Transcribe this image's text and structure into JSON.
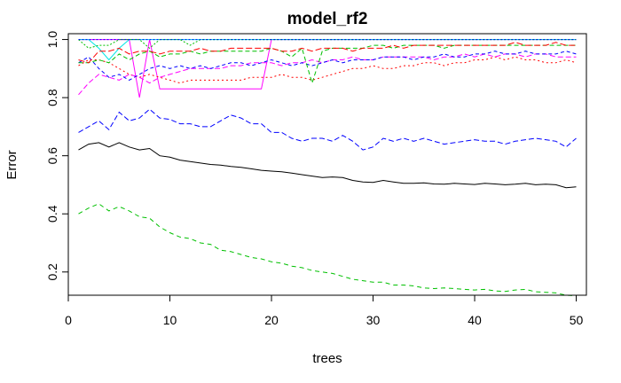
{
  "chart_data": {
    "type": "line",
    "title": "model_rf2",
    "xlabel": "trees",
    "ylabel": "Error",
    "xlim": [
      0,
      51
    ],
    "ylim": [
      0.12,
      1.02
    ],
    "x_ticks": [
      "0",
      "10",
      "20",
      "30",
      "40",
      "50"
    ],
    "y_ticks": [
      "0.2",
      "0.4",
      "0.6",
      "0.8",
      "1.0"
    ],
    "grid": false,
    "legend": "none",
    "x": [
      1,
      2,
      3,
      4,
      5,
      6,
      7,
      8,
      9,
      10,
      11,
      12,
      13,
      14,
      15,
      16,
      17,
      18,
      19,
      20,
      21,
      22,
      23,
      24,
      25,
      26,
      27,
      28,
      29,
      30,
      31,
      32,
      33,
      34,
      35,
      36,
      37,
      38,
      39,
      40,
      41,
      42,
      43,
      44,
      45,
      46,
      47,
      48,
      49,
      50
    ],
    "series": [
      {
        "color": "#000000",
        "dash": "",
        "values": [
          0.62,
          0.64,
          0.645,
          0.63,
          0.645,
          0.63,
          0.62,
          0.625,
          0.6,
          0.595,
          0.585,
          0.58,
          0.575,
          0.57,
          0.568,
          0.563,
          0.56,
          0.555,
          0.55,
          0.547,
          0.545,
          0.54,
          0.535,
          0.53,
          0.525,
          0.527,
          0.525,
          0.515,
          0.51,
          0.508,
          0.515,
          0.51,
          0.505,
          0.505,
          0.507,
          0.503,
          0.502,
          0.505,
          0.503,
          0.501,
          0.505,
          0.503,
          0.5,
          0.502,
          0.505,
          0.5,
          0.502,
          0.5,
          0.49,
          0.493
        ]
      },
      {
        "color": "#0000ff",
        "dash": "6,3",
        "values": [
          0.68,
          0.7,
          0.72,
          0.69,
          0.75,
          0.72,
          0.73,
          0.76,
          0.73,
          0.725,
          0.71,
          0.71,
          0.7,
          0.7,
          0.72,
          0.74,
          0.73,
          0.71,
          0.71,
          0.68,
          0.68,
          0.66,
          0.65,
          0.66,
          0.66,
          0.65,
          0.67,
          0.65,
          0.62,
          0.63,
          0.66,
          0.65,
          0.66,
          0.65,
          0.66,
          0.65,
          0.64,
          0.645,
          0.65,
          0.655,
          0.65,
          0.65,
          0.64,
          0.65,
          0.655,
          0.66,
          0.655,
          0.65,
          0.63,
          0.66
        ]
      },
      {
        "color": "#00c000",
        "dash": "5,4",
        "values": [
          0.4,
          0.42,
          0.435,
          0.41,
          0.425,
          0.41,
          0.39,
          0.385,
          0.355,
          0.335,
          0.32,
          0.315,
          0.3,
          0.295,
          0.275,
          0.27,
          0.26,
          0.25,
          0.245,
          0.235,
          0.23,
          0.22,
          0.215,
          0.205,
          0.2,
          0.195,
          0.185,
          0.175,
          0.17,
          0.165,
          0.165,
          0.155,
          0.155,
          0.152,
          0.145,
          0.143,
          0.145,
          0.143,
          0.14,
          0.138,
          0.14,
          0.135,
          0.133,
          0.138,
          0.14,
          0.132,
          0.13,
          0.128,
          0.12,
          0.118
        ]
      },
      {
        "color": "#ff00ff",
        "dash": "",
        "values": [
          1.0,
          1.0,
          1.0,
          1.0,
          1.0,
          1.0,
          0.8,
          1.0,
          0.83,
          0.83,
          0.83,
          0.83,
          0.83,
          0.83,
          0.83,
          0.83,
          0.83,
          0.83,
          0.83,
          1.0,
          1.0,
          1.0,
          1.0,
          1.0,
          1.0,
          1.0,
          1.0,
          1.0,
          1.0,
          1.0,
          1.0,
          1.0,
          1.0,
          1.0,
          1.0,
          1.0,
          1.0,
          1.0,
          1.0,
          1.0,
          1.0,
          1.0,
          1.0,
          1.0,
          1.0,
          1.0,
          1.0,
          1.0,
          1.0,
          1.0
        ]
      },
      {
        "color": "#00e5e5",
        "dash": "",
        "values": [
          1.0,
          1.0,
          0.97,
          0.93,
          0.97,
          1.0,
          1.0,
          1.0,
          1.0,
          1.0,
          1.0,
          1.0,
          1.0,
          1.0,
          1.0,
          1.0,
          1.0,
          1.0,
          1.0,
          1.0,
          1.0,
          1.0,
          1.0,
          1.0,
          1.0,
          1.0,
          1.0,
          1.0,
          1.0,
          1.0,
          1.0,
          1.0,
          1.0,
          1.0,
          1.0,
          1.0,
          1.0,
          1.0,
          1.0,
          1.0,
          1.0,
          1.0,
          1.0,
          1.0,
          1.0,
          1.0,
          1.0,
          1.0,
          1.0,
          1.0
        ]
      },
      {
        "color": "#ff0000",
        "dash": "2,3",
        "values": [
          0.91,
          0.93,
          0.93,
          0.92,
          0.9,
          0.88,
          0.87,
          0.88,
          0.87,
          0.86,
          0.85,
          0.86,
          0.86,
          0.86,
          0.86,
          0.86,
          0.86,
          0.87,
          0.87,
          0.87,
          0.88,
          0.87,
          0.87,
          0.86,
          0.87,
          0.88,
          0.89,
          0.9,
          0.9,
          0.91,
          0.9,
          0.9,
          0.91,
          0.91,
          0.92,
          0.92,
          0.91,
          0.92,
          0.92,
          0.93,
          0.93,
          0.94,
          0.93,
          0.94,
          0.93,
          0.93,
          0.92,
          0.92,
          0.93,
          0.92
        ]
      },
      {
        "color": "#ff00ff",
        "dash": "6,3",
        "values": [
          0.81,
          0.85,
          0.88,
          0.87,
          0.86,
          0.88,
          0.87,
          0.85,
          0.87,
          0.88,
          0.89,
          0.9,
          0.9,
          0.9,
          0.9,
          0.91,
          0.91,
          0.92,
          0.92,
          0.92,
          0.91,
          0.92,
          0.92,
          0.93,
          0.92,
          0.93,
          0.93,
          0.94,
          0.93,
          0.93,
          0.94,
          0.94,
          0.94,
          0.94,
          0.94,
          0.93,
          0.94,
          0.94,
          0.95,
          0.94,
          0.95,
          0.94,
          0.95,
          0.95,
          0.94,
          0.95,
          0.95,
          0.94,
          0.94,
          0.94
        ]
      },
      {
        "color": "#0000ff",
        "dash": "4,3",
        "values": [
          0.92,
          0.94,
          0.9,
          0.87,
          0.88,
          0.86,
          0.88,
          0.9,
          0.91,
          0.9,
          0.91,
          0.9,
          0.91,
          0.9,
          0.91,
          0.92,
          0.92,
          0.91,
          0.92,
          0.93,
          0.92,
          0.91,
          0.92,
          0.91,
          0.92,
          0.93,
          0.92,
          0.93,
          0.93,
          0.93,
          0.94,
          0.94,
          0.94,
          0.93,
          0.94,
          0.94,
          0.95,
          0.94,
          0.94,
          0.95,
          0.95,
          0.96,
          0.95,
          0.95,
          0.96,
          0.95,
          0.95,
          0.95,
          0.96,
          0.95
        ]
      },
      {
        "color": "#00c000",
        "dash": "5,3",
        "values": [
          0.92,
          0.92,
          0.93,
          0.92,
          0.95,
          0.93,
          0.95,
          0.96,
          0.94,
          0.95,
          0.95,
          0.96,
          0.95,
          0.96,
          0.96,
          0.96,
          0.96,
          0.96,
          0.96,
          0.97,
          0.96,
          0.94,
          0.97,
          0.85,
          0.96,
          0.97,
          0.97,
          0.97,
          0.97,
          0.98,
          0.98,
          0.97,
          0.98,
          0.98,
          0.98,
          0.98,
          0.97,
          0.98,
          0.98,
          0.98,
          0.98,
          0.98,
          0.98,
          0.98,
          0.98,
          0.98,
          0.98,
          0.98,
          0.98,
          0.98
        ]
      },
      {
        "color": "#ff0000",
        "dash": "7,3",
        "values": [
          0.93,
          0.92,
          0.96,
          0.96,
          0.97,
          0.95,
          0.96,
          0.96,
          0.95,
          0.96,
          0.96,
          0.96,
          0.97,
          0.96,
          0.96,
          0.97,
          0.97,
          0.97,
          0.97,
          0.97,
          0.96,
          0.96,
          0.97,
          0.96,
          0.97,
          0.97,
          0.97,
          0.96,
          0.97,
          0.97,
          0.97,
          0.98,
          0.97,
          0.98,
          0.98,
          0.98,
          0.98,
          0.98,
          0.98,
          0.98,
          0.98,
          0.98,
          0.98,
          0.99,
          0.98,
          0.98,
          0.98,
          0.99,
          0.98,
          0.98
        ]
      },
      {
        "color": "#00c000",
        "dash": "2,2",
        "values": [
          1.0,
          0.97,
          0.98,
          0.98,
          1.0,
          1.0,
          1.0,
          0.97,
          1.0,
          1.0,
          1.0,
          0.98,
          1.0,
          1.0,
          1.0,
          1.0,
          1.0,
          1.0,
          1.0,
          1.0,
          1.0,
          1.0,
          1.0,
          1.0,
          1.0,
          1.0,
          1.0,
          1.0,
          1.0,
          1.0,
          1.0,
          1.0,
          1.0,
          1.0,
          1.0,
          1.0,
          1.0,
          1.0,
          1.0,
          1.0,
          1.0,
          1.0,
          1.0,
          1.0,
          1.0,
          1.0,
          1.0,
          1.0,
          1.0,
          1.0
        ]
      },
      {
        "color": "#0000ff",
        "dash": "2,2",
        "values": [
          1.0,
          1.0,
          1.0,
          1.0,
          1.0,
          1.0,
          1.0,
          1.0,
          1.0,
          1.0,
          1.0,
          1.0,
          1.0,
          1.0,
          1.0,
          1.0,
          1.0,
          1.0,
          1.0,
          1.0,
          1.0,
          1.0,
          1.0,
          1.0,
          1.0,
          1.0,
          1.0,
          1.0,
          1.0,
          1.0,
          1.0,
          1.0,
          1.0,
          1.0,
          1.0,
          1.0,
          1.0,
          1.0,
          1.0,
          1.0,
          1.0,
          1.0,
          1.0,
          1.0,
          1.0,
          1.0,
          1.0,
          1.0,
          1.0,
          1.0
        ]
      }
    ]
  }
}
